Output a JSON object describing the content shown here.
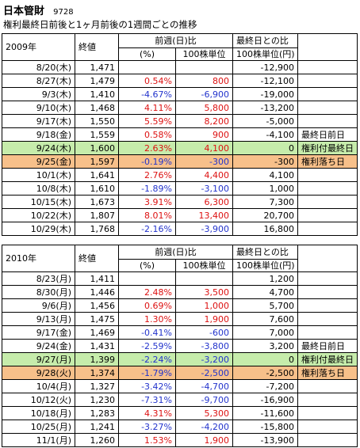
{
  "title": {
    "name": "日本管財",
    "code": "9728"
  },
  "subtitle": "権利最終日前後と1ヶ月前後の1週間ごとの推移",
  "headers": {
    "closing": "終値",
    "group1": "前週(日)比",
    "pct": "(%)",
    "per100_1": "100株単位",
    "group2": "最終日との比",
    "per100_2": "100株単位(円)"
  },
  "tables": [
    {
      "year": "2009年",
      "rows": [
        {
          "date": "8/20(木)",
          "close": "1,471",
          "pct": "",
          "d100": "",
          "vs_last": "-12,900",
          "note": "",
          "hl": ""
        },
        {
          "date": "8/27(木)",
          "close": "1,479",
          "pct": "0.54%",
          "d100": "800",
          "vs_last": "-12,100",
          "note": "",
          "hl": ""
        },
        {
          "date": "9/3(木)",
          "close": "1,410",
          "pct": "-4.67%",
          "d100": "-6,900",
          "vs_last": "-19,000",
          "note": "",
          "hl": ""
        },
        {
          "date": "9/10(木)",
          "close": "1,468",
          "pct": "4.11%",
          "d100": "5,800",
          "vs_last": "-13,200",
          "note": "",
          "hl": ""
        },
        {
          "date": "9/17(木)",
          "close": "1,550",
          "pct": "5.59%",
          "d100": "8,200",
          "vs_last": "-5,000",
          "note": "",
          "hl": ""
        },
        {
          "date": "9/18(金)",
          "close": "1,559",
          "pct": "0.58%",
          "d100": "900",
          "vs_last": "-4,100",
          "note": "最終日前日",
          "hl": ""
        },
        {
          "date": "9/24(木)",
          "close": "1,600",
          "pct": "2.63%",
          "d100": "4,100",
          "vs_last": "0",
          "note": "権利付最終日",
          "hl": "green"
        },
        {
          "date": "9/25(金)",
          "close": "1,597",
          "pct": "-0.19%",
          "d100": "-300",
          "vs_last": "-300",
          "note": "権利落ち日",
          "hl": "orange"
        },
        {
          "date": "10/1(木)",
          "close": "1,641",
          "pct": "2.76%",
          "d100": "4,400",
          "vs_last": "4,100",
          "note": "",
          "hl": ""
        },
        {
          "date": "10/8(木)",
          "close": "1,610",
          "pct": "-1.89%",
          "d100": "-3,100",
          "vs_last": "1,000",
          "note": "",
          "hl": ""
        },
        {
          "date": "10/15(木)",
          "close": "1,673",
          "pct": "3.91%",
          "d100": "6,300",
          "vs_last": "7,300",
          "note": "",
          "hl": ""
        },
        {
          "date": "10/22(木)",
          "close": "1,807",
          "pct": "8.01%",
          "d100": "13,400",
          "vs_last": "20,700",
          "note": "",
          "hl": ""
        },
        {
          "date": "10/29(木)",
          "close": "1,768",
          "pct": "-2.16%",
          "d100": "-3,900",
          "vs_last": "16,800",
          "note": "",
          "hl": ""
        }
      ]
    },
    {
      "year": "2010年",
      "rows": [
        {
          "date": "8/23(月)",
          "close": "1,411",
          "pct": "",
          "d100": "",
          "vs_last": "1,200",
          "note": "",
          "hl": ""
        },
        {
          "date": "8/30(月)",
          "close": "1,446",
          "pct": "2.48%",
          "d100": "3,500",
          "vs_last": "4,700",
          "note": "",
          "hl": ""
        },
        {
          "date": "9/6(月)",
          "close": "1,456",
          "pct": "0.69%",
          "d100": "1,000",
          "vs_last": "5,700",
          "note": "",
          "hl": ""
        },
        {
          "date": "9/13(月)",
          "close": "1,475",
          "pct": "1.30%",
          "d100": "1,900",
          "vs_last": "7,600",
          "note": "",
          "hl": ""
        },
        {
          "date": "9/17(金)",
          "close": "1,469",
          "pct": "-0.41%",
          "d100": "-600",
          "vs_last": "7,000",
          "note": "",
          "hl": ""
        },
        {
          "date": "9/24(金)",
          "close": "1,431",
          "pct": "-2.59%",
          "d100": "-3,800",
          "vs_last": "3,200",
          "note": "最終日前日",
          "hl": ""
        },
        {
          "date": "9/27(月)",
          "close": "1,399",
          "pct": "-2.24%",
          "d100": "-3,200",
          "vs_last": "0",
          "note": "権利付最終日",
          "hl": "green"
        },
        {
          "date": "9/28(火)",
          "close": "1,374",
          "pct": "-1.79%",
          "d100": "-2,500",
          "vs_last": "-2,500",
          "note": "権利落ち日",
          "hl": "orange"
        },
        {
          "date": "10/4(月)",
          "close": "1,327",
          "pct": "-3.42%",
          "d100": "-4,700",
          "vs_last": "-7,200",
          "note": "",
          "hl": ""
        },
        {
          "date": "10/12(火)",
          "close": "1,230",
          "pct": "-7.31%",
          "d100": "-9,700",
          "vs_last": "-16,900",
          "note": "",
          "hl": ""
        },
        {
          "date": "10/18(月)",
          "close": "1,283",
          "pct": "4.31%",
          "d100": "5,300",
          "vs_last": "-11,600",
          "note": "",
          "hl": ""
        },
        {
          "date": "10/25(月)",
          "close": "1,241",
          "pct": "-3.27%",
          "d100": "-4,200",
          "vs_last": "-15,800",
          "note": "",
          "hl": ""
        },
        {
          "date": "11/1(月)",
          "close": "1,260",
          "pct": "1.53%",
          "d100": "1,900",
          "vs_last": "-13,900",
          "note": "",
          "hl": ""
        }
      ]
    }
  ],
  "colors": {
    "positive": "#dd1111",
    "negative": "#2233cc",
    "rights_last_day": "#c6ecab",
    "ex_rights_day": "#f7c08a"
  }
}
